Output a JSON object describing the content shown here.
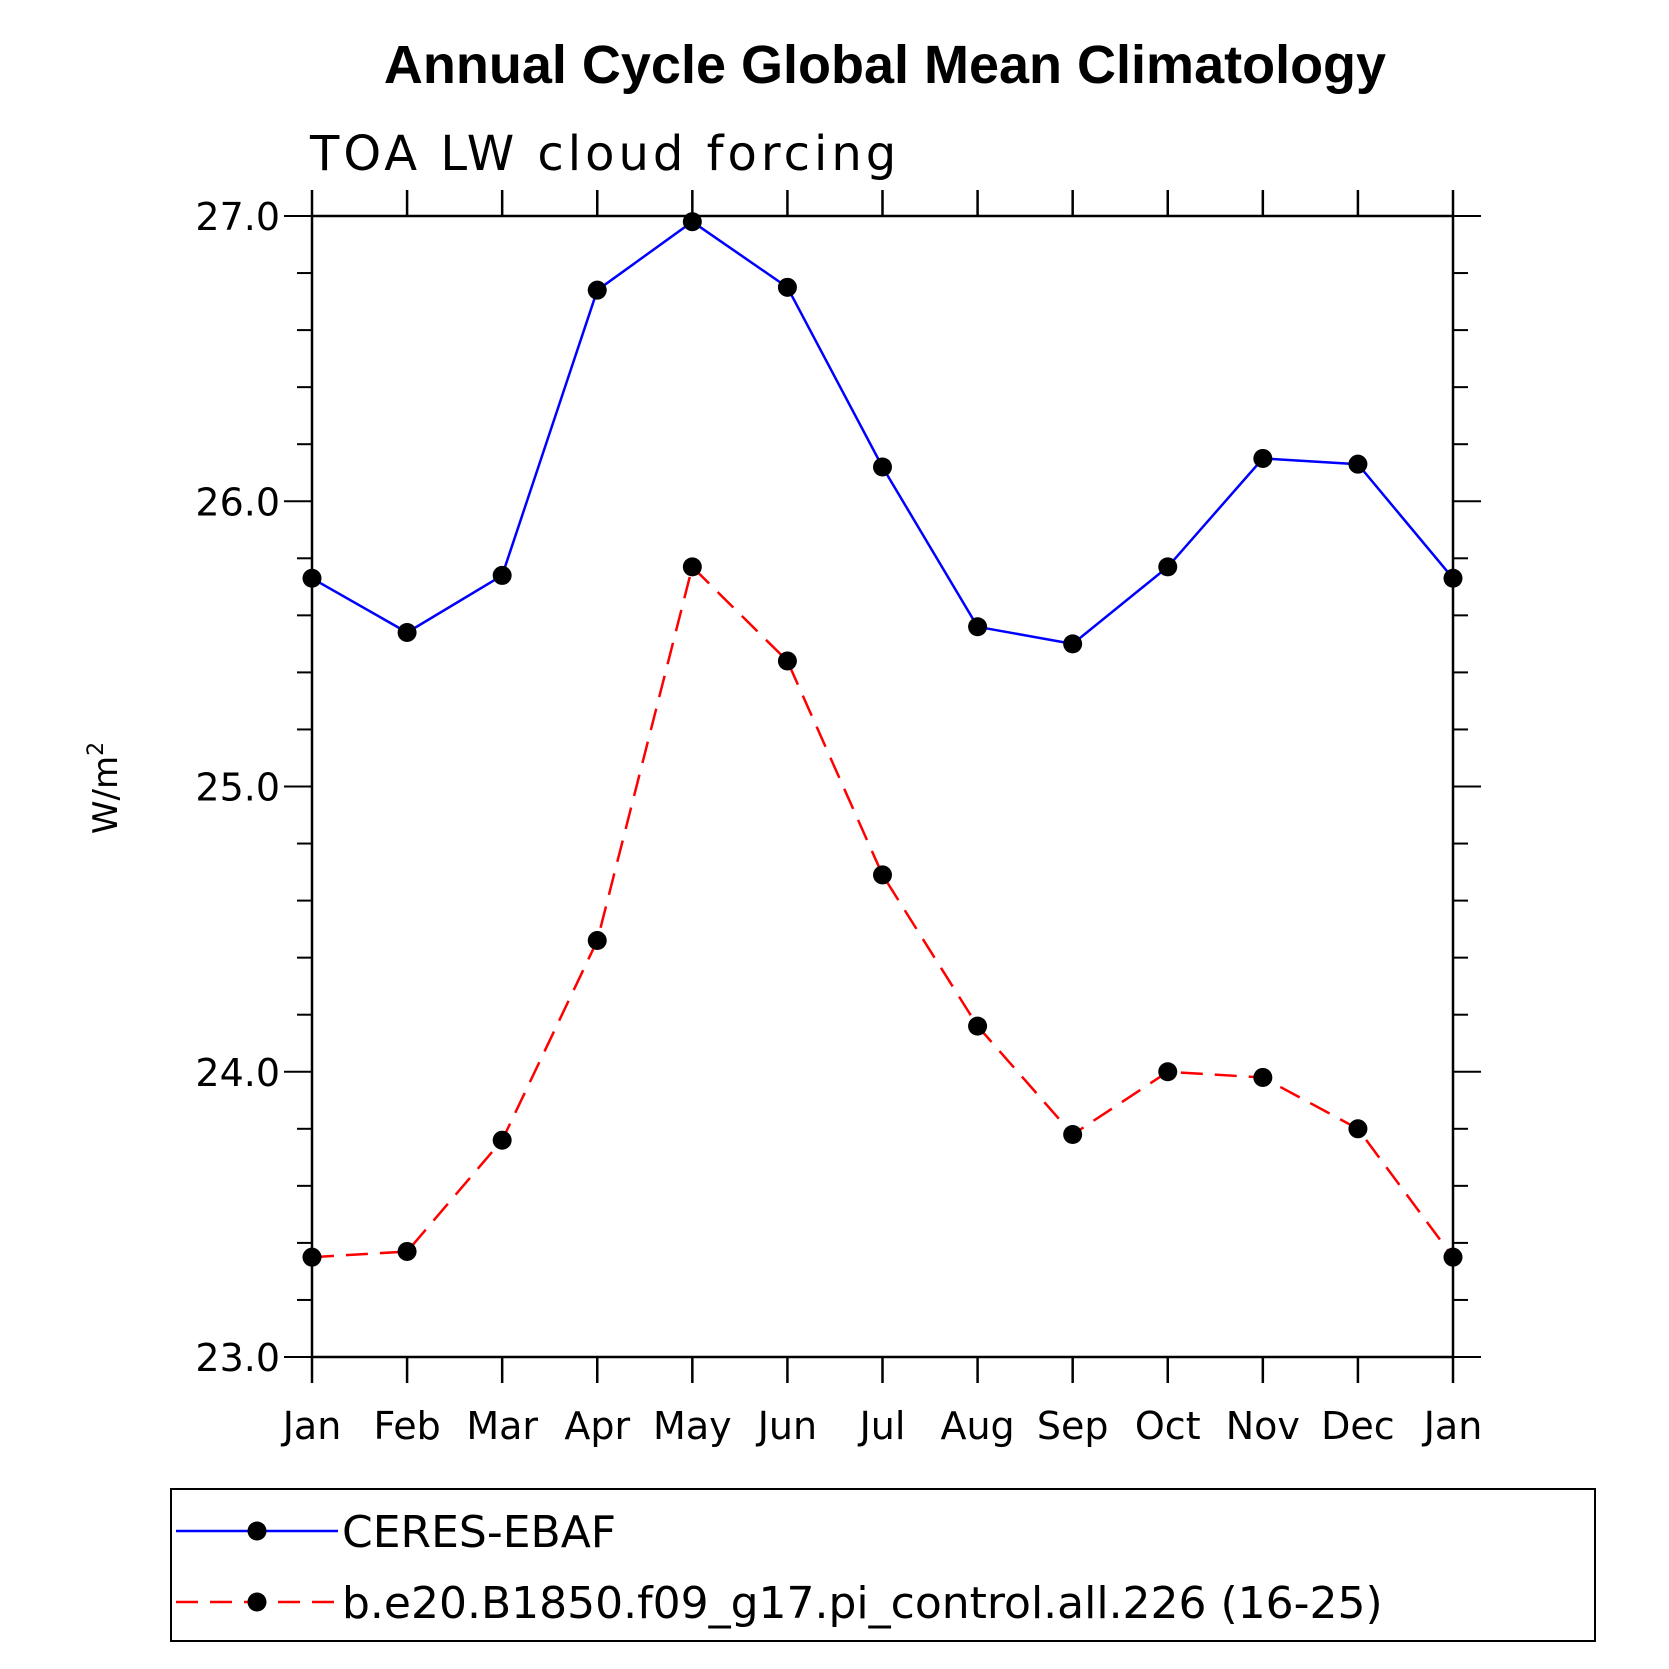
{
  "chart_data": {
    "type": "line",
    "title": "Annual Cycle Global Mean Climatology",
    "subtitle": "TOA LW cloud forcing",
    "ylabel": "W/m",
    "ylabel_superscript": "2",
    "ylim": [
      23.0,
      27.0
    ],
    "yticks": [
      "23.0",
      "24.0",
      "25.0",
      "26.0",
      "27.0"
    ],
    "categories": [
      "Jan",
      "Feb",
      "Mar",
      "Apr",
      "May",
      "Jun",
      "Jul",
      "Aug",
      "Sep",
      "Oct",
      "Nov",
      "Dec",
      "Jan"
    ],
    "grid": false,
    "legend_position": "bottom",
    "series": [
      {
        "name": "CERES-EBAF",
        "color": "#0000ff",
        "dash": "solid",
        "values": [
          25.73,
          25.54,
          25.74,
          26.74,
          26.98,
          26.75,
          26.12,
          25.56,
          25.5,
          25.77,
          26.15,
          26.13,
          25.73
        ]
      },
      {
        "name": "b.e20.B1850.f09_g17.pi_control.all.226 (16-25)",
        "color": "#ff0000",
        "dash": "dashed",
        "values": [
          23.35,
          23.37,
          23.76,
          24.46,
          25.77,
          25.44,
          24.69,
          24.16,
          23.78,
          24.0,
          23.98,
          23.8,
          23.35
        ]
      }
    ]
  }
}
